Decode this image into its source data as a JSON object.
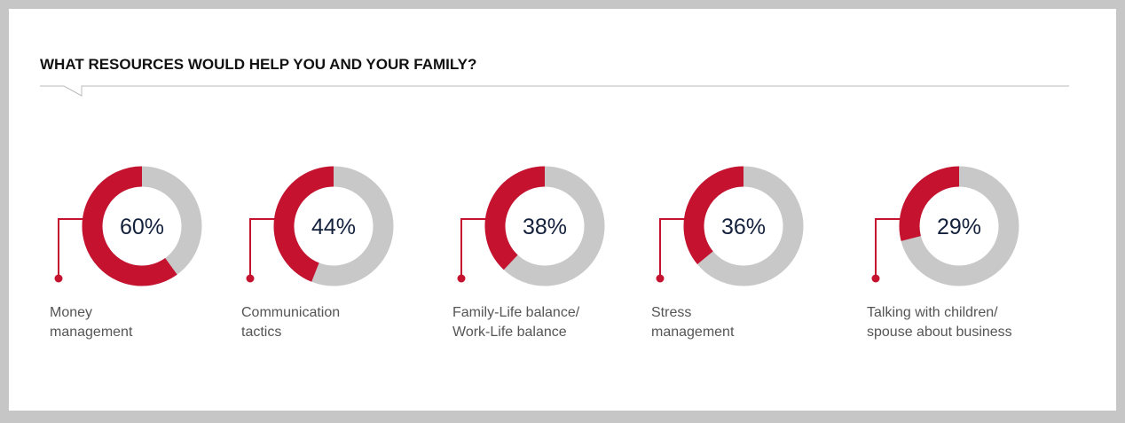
{
  "chart_data": {
    "type": "donut",
    "title": "WHAT RESOURCES WOULD HELP YOU AND YOUR FAMILY?",
    "categories": [
      "Money\nmanagement",
      "Communication\ntactics",
      "Family-Life balance/\nWork-Life balance",
      "Stress\nmanagement",
      "Talking with children/\nspouse about business"
    ],
    "values": [
      60,
      44,
      38,
      36,
      29
    ],
    "value_labels": [
      "60%",
      "44%",
      "38%",
      "36%",
      "29%"
    ],
    "color": "#c4122f",
    "track_color": "#c8c8c8"
  }
}
